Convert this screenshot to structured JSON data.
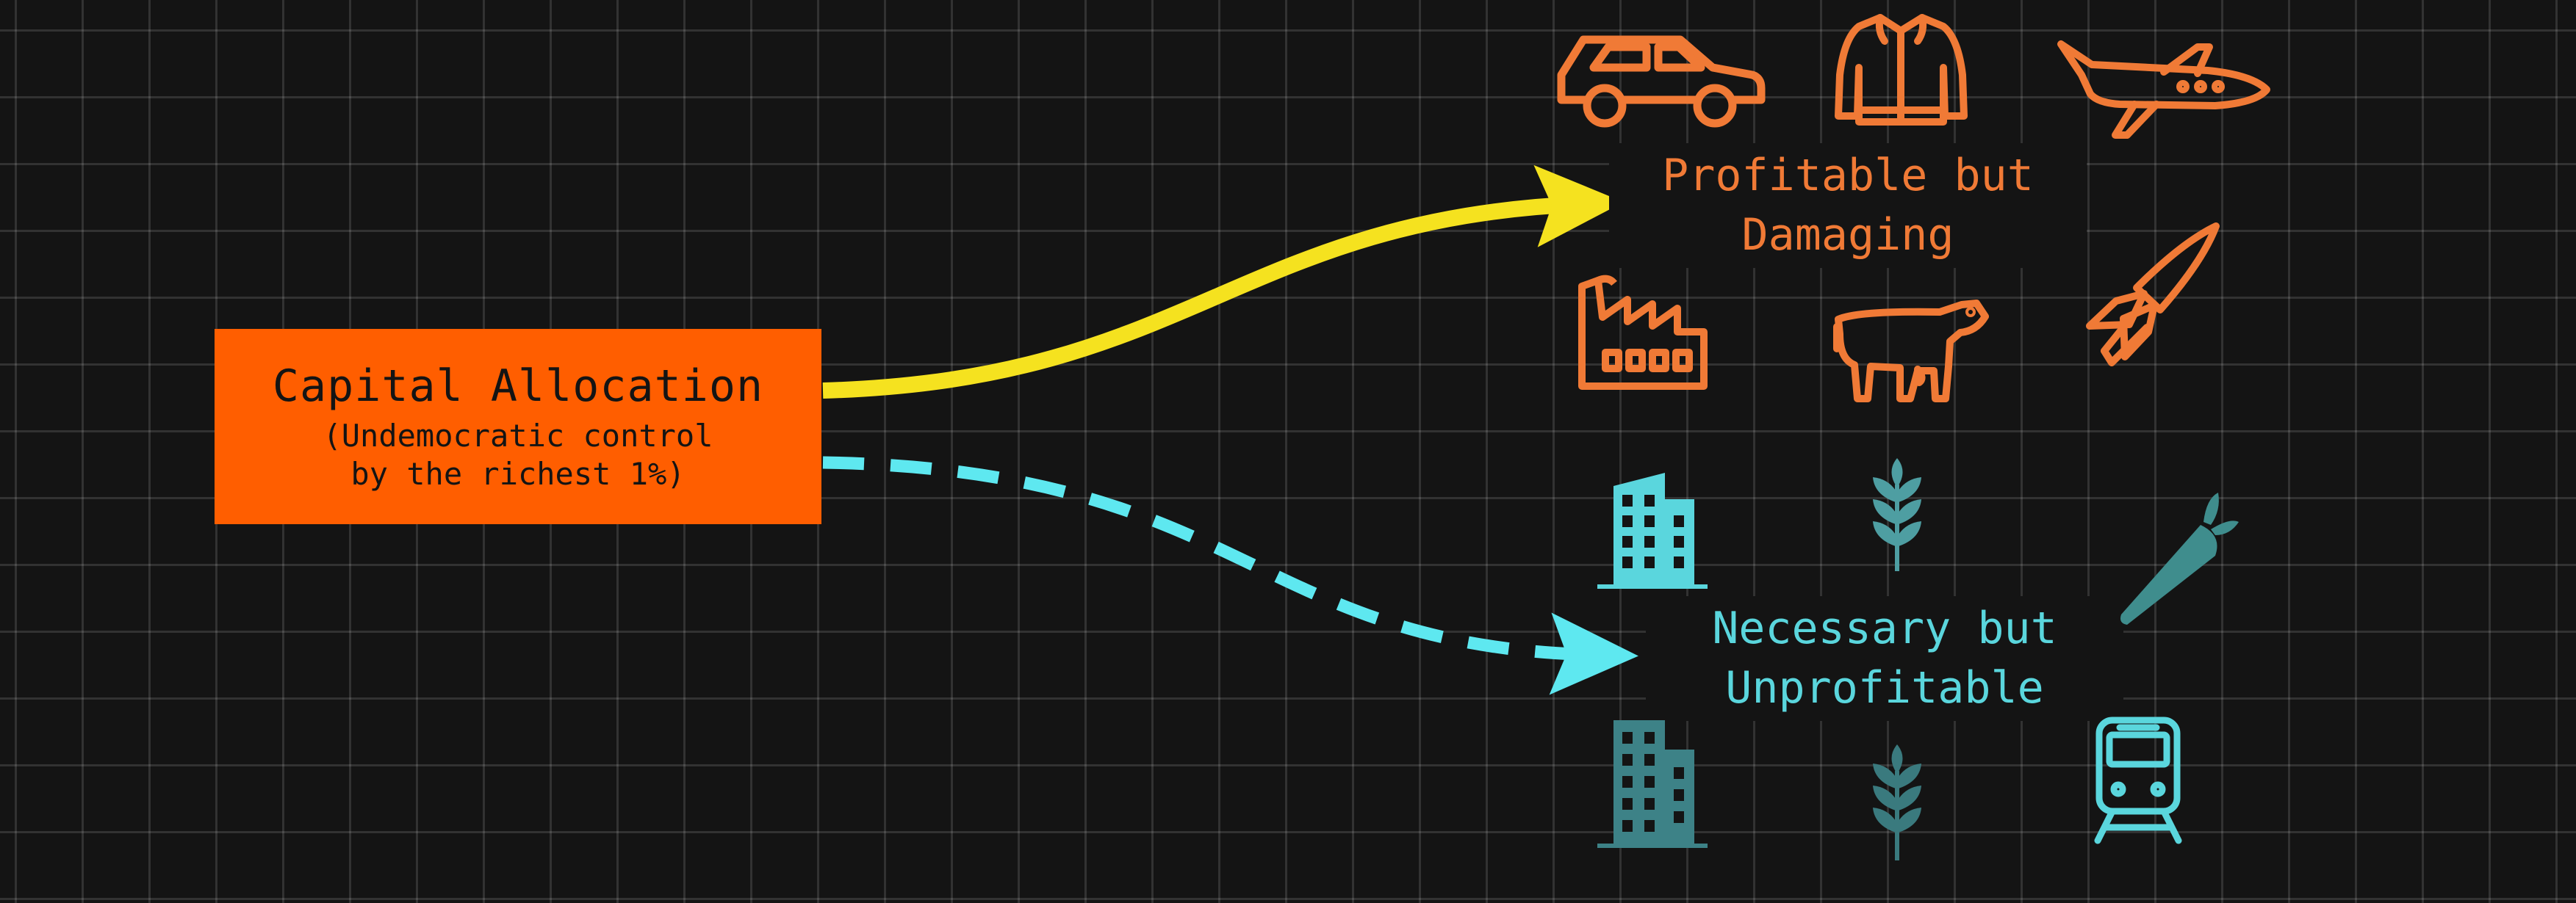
{
  "source_box": {
    "title": "Capital Allocation",
    "subtitle_line1": "(Undemocratic control",
    "subtitle_line2": "by the richest 1%)",
    "color": "#ff5e00"
  },
  "targets": {
    "damaging": {
      "label": "Profitable but\nDamaging",
      "color": "#f07a36",
      "arrow_color": "#f5e21f",
      "arrow_style": "solid",
      "icons": [
        "car-icon",
        "jacket-icon",
        "private-jet-icon",
        "factory-icon",
        "cow-icon",
        "rocket-icon"
      ]
    },
    "necessary": {
      "label": "Necessary but\nUnprofitable",
      "color": "#5ad6dd",
      "arrow_color": "#5ee8f0",
      "arrow_style": "dashed",
      "icons": [
        "apartment-building-icon",
        "wheat-icon",
        "carrot-icon",
        "apartment-building-icon",
        "wheat-icon",
        "train-icon"
      ]
    }
  },
  "background": {
    "color": "#141414",
    "grid": true
  }
}
